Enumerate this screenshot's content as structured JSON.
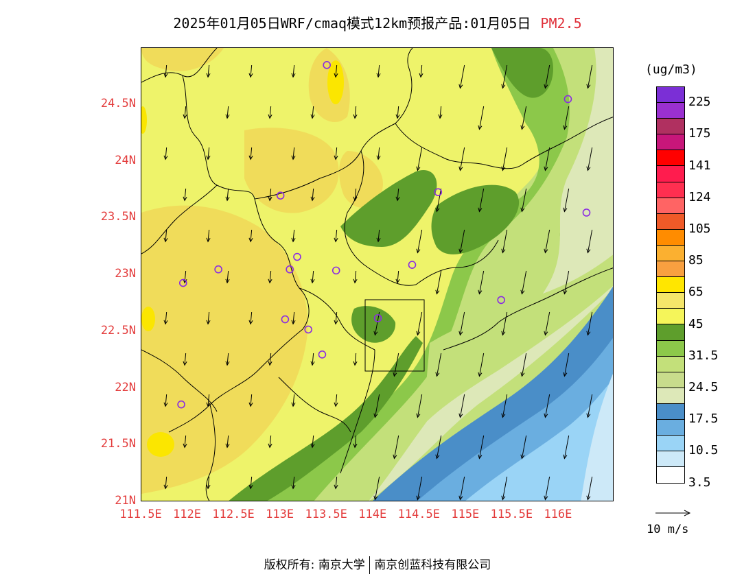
{
  "title": {
    "main": "2025年01月05日WRF/cmaq模式12km预报产品:01月05日",
    "species": "PM2.5"
  },
  "axes": {
    "lat_labels": [
      "24.5N",
      "24N",
      "23.5N",
      "23N",
      "22.5N",
      "22N",
      "21.5N",
      "21N"
    ],
    "lon_labels": [
      "111.5E",
      "112E",
      "112.5E",
      "113E",
      "113.5E",
      "114E",
      "114.5E",
      "115E",
      "115.5E",
      "116E"
    ]
  },
  "colorbar": {
    "unit": "(ug/m3)",
    "colors": [
      "#7b2fd6",
      "#9a30d0",
      "#b03060",
      "#c8167a",
      "#ff0000",
      "#ff1c4e",
      "#ff2f50",
      "#ff6464",
      "#f05a28",
      "#ff8c00",
      "#fbb030",
      "#f8a040",
      "#ffe600",
      "#f5e66a",
      "#f5f55a",
      "#5e9e2c",
      "#8cc84a",
      "#c3e07a",
      "#c8dc8c",
      "#dde8b8",
      "#4a8ec8",
      "#6aaee0",
      "#9ad4f6",
      "#cde9f8",
      "#ffffff"
    ],
    "labels": [
      "225",
      "175",
      "141",
      "124",
      "105",
      "85",
      "65",
      "45",
      "31.5",
      "24.5",
      "17.5",
      "10.5",
      "3.5"
    ]
  },
  "wind_key": {
    "label": "10 m/s"
  },
  "footer": {
    "left": "版权所有: 南京大学",
    "right": "南京创蓝科技有限公司"
  },
  "stations": [
    {
      "lon": 113.5,
      "lat": 24.85
    },
    {
      "lon": 116.1,
      "lat": 24.55
    },
    {
      "lon": 113.0,
      "lat": 23.7
    },
    {
      "lon": 114.7,
      "lat": 23.73
    },
    {
      "lon": 116.3,
      "lat": 23.55
    },
    {
      "lon": 112.33,
      "lat": 23.05
    },
    {
      "lon": 111.95,
      "lat": 22.93
    },
    {
      "lon": 113.1,
      "lat": 23.05
    },
    {
      "lon": 113.18,
      "lat": 23.16
    },
    {
      "lon": 113.6,
      "lat": 23.04
    },
    {
      "lon": 114.42,
      "lat": 23.09
    },
    {
      "lon": 114.05,
      "lat": 22.62
    },
    {
      "lon": 115.38,
      "lat": 22.78
    },
    {
      "lon": 113.05,
      "lat": 22.61
    },
    {
      "lon": 113.3,
      "lat": 22.52
    },
    {
      "lon": 113.45,
      "lat": 22.3
    },
    {
      "lon": 111.93,
      "lat": 21.86
    }
  ]
}
